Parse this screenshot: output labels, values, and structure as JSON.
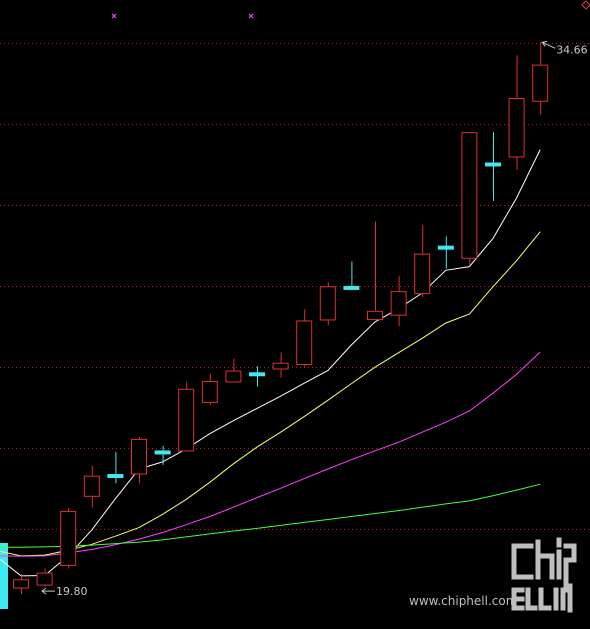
{
  "chart_data": {
    "type": "candlestick",
    "title": "",
    "xlabel": "",
    "ylabel": "",
    "ylim": [
      18.86,
      35.8
    ],
    "grid": true,
    "max_label": "34.66",
    "min_label": "19.80",
    "colors": {
      "background": "#000000",
      "grid": "#c02020",
      "up_candle": "#e03030",
      "doji_candle": "#40e8f0",
      "ma5": "#ffffff",
      "ma10": "#ffff60",
      "ma20": "#ff40ff",
      "ma60": "#40ff40",
      "volume_bar": "#40e8f0",
      "marker": "#ff40ff"
    },
    "candles": [
      {
        "o": 19.95,
        "h": 20.34,
        "l": 19.8,
        "c": 20.2
      },
      {
        "o": 20.03,
        "h": 20.49,
        "l": 20.0,
        "c": 20.38
      },
      {
        "o": 20.56,
        "h": 22.12,
        "l": 20.49,
        "c": 22.04
      },
      {
        "o": 22.42,
        "h": 23.26,
        "l": 22.14,
        "c": 22.99
      },
      {
        "o": 22.92,
        "h": 23.63,
        "l": 22.78,
        "c": 23.04
      },
      {
        "o": 23.02,
        "h": 24.03,
        "l": 22.78,
        "c": 23.98
      },
      {
        "o": 23.56,
        "h": 23.8,
        "l": 23.28,
        "c": 23.67
      },
      {
        "o": 23.64,
        "h": 25.52,
        "l": 23.64,
        "c": 25.33
      },
      {
        "o": 24.95,
        "h": 25.73,
        "l": 24.89,
        "c": 25.54
      },
      {
        "o": 25.5,
        "h": 26.14,
        "l": 25.5,
        "c": 25.82
      },
      {
        "o": 25.7,
        "h": 25.94,
        "l": 25.39,
        "c": 25.74
      },
      {
        "o": 25.85,
        "h": 26.31,
        "l": 25.63,
        "c": 26.03
      },
      {
        "o": 25.97,
        "h": 27.47,
        "l": 25.93,
        "c": 27.17
      },
      {
        "o": 27.17,
        "h": 28.2,
        "l": 27.04,
        "c": 28.09
      },
      {
        "o": 28.04,
        "h": 28.76,
        "l": 28.04,
        "c": 28.05
      },
      {
        "o": 27.18,
        "h": 29.83,
        "l": 27.18,
        "c": 27.43
      },
      {
        "o": 27.3,
        "h": 28.37,
        "l": 27.02,
        "c": 27.96
      },
      {
        "o": 27.88,
        "h": 29.73,
        "l": 27.8,
        "c": 28.97
      },
      {
        "o": 29.1,
        "h": 29.43,
        "l": 28.56,
        "c": 29.16
      },
      {
        "o": 28.83,
        "h": 32.24,
        "l": 28.66,
        "c": 32.24
      },
      {
        "o": 31.34,
        "h": 32.24,
        "l": 30.39,
        "c": 31.4
      },
      {
        "o": 31.56,
        "h": 34.31,
        "l": 31.22,
        "c": 33.16
      },
      {
        "o": 33.06,
        "h": 34.66,
        "l": 32.71,
        "c": 34.06
      }
    ],
    "series": [
      {
        "key": "ma5",
        "start_index": -1,
        "values": [
          20.74,
          20.29,
          20.3,
          20.83,
          21.53,
          22.37,
          23.17,
          23.36,
          23.71,
          24.12,
          24.47,
          24.8,
          25.13,
          25.48,
          25.82,
          26.51,
          27.13,
          27.49,
          27.91,
          28.52,
          28.62,
          29.38,
          30.47,
          31.77
        ]
      },
      {
        "key": "ma10",
        "start_index": -1,
        "values": [
          20.95,
          20.83,
          20.85,
          20.98,
          21.14,
          21.36,
          21.59,
          21.95,
          22.35,
          22.81,
          23.31,
          23.76,
          24.16,
          24.58,
          25.02,
          25.47,
          25.91,
          26.3,
          26.69,
          27.1,
          27.34,
          28.08,
          28.78,
          29.56
        ]
      },
      {
        "key": "ma20",
        "start_index": -1,
        "values": [
          20.83,
          20.82,
          20.83,
          20.91,
          21.0,
          21.13,
          21.28,
          21.46,
          21.67,
          21.89,
          22.14,
          22.4,
          22.65,
          22.91,
          23.17,
          23.42,
          23.66,
          23.89,
          24.16,
          24.43,
          24.73,
          25.21,
          25.72,
          26.32
        ]
      },
      {
        "key": "ma60",
        "start_index": -1,
        "values": [
          21.06,
          21.06,
          21.07,
          21.09,
          21.12,
          21.16,
          21.2,
          21.26,
          21.34,
          21.42,
          21.5,
          21.57,
          21.65,
          21.73,
          21.81,
          21.89,
          21.97,
          22.05,
          22.14,
          22.23,
          22.31,
          22.45,
          22.6,
          22.76
        ]
      }
    ]
  },
  "watermark": {
    "logo_text": "chiphell",
    "url": "www.chiphell.com"
  }
}
